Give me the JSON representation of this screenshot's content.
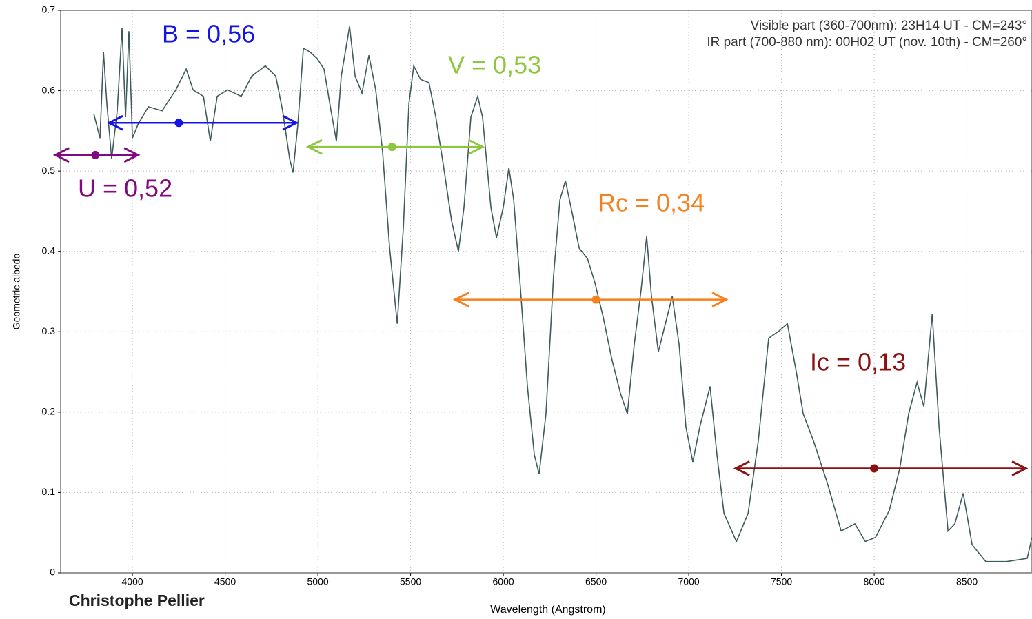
{
  "chart_data": {
    "type": "line",
    "xlabel": "Wavelength (Angstrom)",
    "ylabel": "Geometric albedo",
    "credit": "Christophe Pellier",
    "annotations": [
      "Visible part (360-700nm): 23H14 UT - CM=243°",
      "IR part (700-880 nm): 00H02 UT (nov. 10th) - CM=260°"
    ],
    "color": "#3f5a5a",
    "x": [
      3792,
      3825,
      3844,
      3862,
      3888,
      3918,
      3944,
      3963,
      3981,
      4000,
      4030,
      4086,
      4160,
      4234,
      4290,
      4327,
      4383,
      4420,
      4457,
      4513,
      4587,
      4643,
      4717,
      4773,
      4810,
      4848,
      4866,
      4892,
      4922,
      4959,
      4996,
      5033,
      5071,
      5100,
      5126,
      5171,
      5201,
      5238,
      5275,
      5312,
      5349,
      5387,
      5428,
      5461,
      5491,
      5517,
      5554,
      5599,
      5636,
      5677,
      5721,
      5758,
      5788,
      5825,
      5862,
      5888,
      5933,
      5963,
      6000,
      6030,
      6056,
      6093,
      6130,
      6167,
      6193,
      6230,
      6271,
      6305,
      6335,
      6372,
      6409,
      6454,
      6494,
      6539,
      6584,
      6632,
      6669,
      6706,
      6743,
      6773,
      6799,
      6836,
      6874,
      6911,
      6948,
      6985,
      7022,
      7059,
      7115,
      7152,
      7190,
      7257,
      7320,
      7375,
      7431,
      7487,
      7532,
      7580,
      7617,
      7673,
      7747,
      7822,
      7896,
      7952,
      8007,
      8082,
      8138,
      8186,
      8231,
      8268,
      8313,
      8350,
      8398,
      8435,
      8480,
      8528,
      8602,
      8714,
      8825,
      8851
    ],
    "values": [
      0.571,
      0.541,
      0.648,
      0.584,
      0.515,
      0.575,
      0.678,
      0.567,
      0.674,
      0.541,
      0.558,
      0.58,
      0.575,
      0.601,
      0.627,
      0.601,
      0.593,
      0.537,
      0.593,
      0.601,
      0.593,
      0.618,
      0.631,
      0.618,
      0.575,
      0.515,
      0.498,
      0.558,
      0.653,
      0.648,
      0.64,
      0.627,
      0.575,
      0.537,
      0.618,
      0.68,
      0.618,
      0.597,
      0.644,
      0.601,
      0.524,
      0.404,
      0.31,
      0.43,
      0.584,
      0.631,
      0.614,
      0.61,
      0.567,
      0.507,
      0.438,
      0.4,
      0.455,
      0.567,
      0.593,
      0.567,
      0.455,
      0.417,
      0.455,
      0.504,
      0.464,
      0.352,
      0.232,
      0.147,
      0.123,
      0.198,
      0.37,
      0.464,
      0.488,
      0.447,
      0.404,
      0.391,
      0.361,
      0.318,
      0.267,
      0.223,
      0.198,
      0.284,
      0.352,
      0.419,
      0.344,
      0.275,
      0.31,
      0.344,
      0.284,
      0.181,
      0.138,
      0.181,
      0.232,
      0.147,
      0.074,
      0.039,
      0.074,
      0.164,
      0.292,
      0.301,
      0.31,
      0.25,
      0.198,
      0.164,
      0.112,
      0.052,
      0.061,
      0.039,
      0.044,
      0.078,
      0.13,
      0.198,
      0.237,
      0.207,
      0.322,
      0.181,
      0.052,
      0.061,
      0.099,
      0.035,
      0.014,
      0.014,
      0.018,
      0.044
    ],
    "bands": [
      {
        "label": "U = 0,52",
        "value": 0.52,
        "center": 3800,
        "xmin": 3584,
        "xmax": 4030,
        "color": "#800a80"
      },
      {
        "label": "B = 0,56",
        "value": 0.56,
        "center": 4250,
        "xmin": 3874,
        "xmax": 4885,
        "color": "#1414e6"
      },
      {
        "label": "V = 0,53",
        "value": 0.53,
        "center": 5400,
        "xmin": 4948,
        "xmax": 5888,
        "color": "#8dc63f"
      },
      {
        "label": "Rc = 0,34",
        "value": 0.34,
        "center": 6500,
        "xmin": 5740,
        "xmax": 7201,
        "color": "#f7801e"
      },
      {
        "label": "Ic = 0,13",
        "value": 0.13,
        "center": 8000,
        "xmin": 7253,
        "xmax": 8818,
        "color": "#8b1010"
      }
    ],
    "xlim": [
      3613,
      8851
    ],
    "ylim": [
      0,
      0.7
    ],
    "xticks": [
      4000,
      4500,
      5000,
      5500,
      6000,
      6500,
      7000,
      7500,
      8000,
      8500
    ],
    "yticks": [
      0,
      0.1,
      0.2,
      0.3,
      0.4,
      0.5,
      0.6,
      0.7
    ],
    "grid": true
  }
}
